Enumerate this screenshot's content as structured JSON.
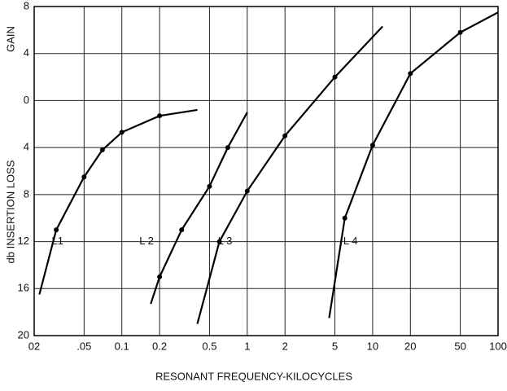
{
  "chart_data": {
    "type": "line",
    "xlabel": "RESONANT FREQUENCY-KILOCYCLES",
    "ylabel_top": "GAIN",
    "ylabel_bottom": "db INSERTION LOSS",
    "xscale": "log",
    "grid": true,
    "xlim": [
      0.02,
      100
    ],
    "xticks": [
      {
        "value": 0.02,
        "label": "02"
      },
      {
        "value": 0.05,
        "label": ".05"
      },
      0.1,
      0.2,
      0.5,
      1,
      2,
      5,
      10,
      20,
      50,
      100
    ],
    "ylim": [
      -20,
      8
    ],
    "yticks": [
      8,
      4,
      0,
      {
        "value": -4,
        "label": "4"
      },
      {
        "value": -8,
        "label": "8"
      },
      {
        "value": -12,
        "label": "12"
      },
      {
        "value": -16,
        "label": "16"
      },
      {
        "value": -20,
        "label": "20"
      }
    ],
    "series": [
      {
        "name": "L1",
        "color": "#000000",
        "x": [
          0.022,
          0.03,
          0.05,
          0.07,
          0.1,
          0.2,
          0.4
        ],
        "values": [
          -16.5,
          -11,
          -6.5,
          -4.2,
          -2.7,
          -1.3,
          -0.8
        ]
      },
      {
        "name": "L 2",
        "color": "#000000",
        "x": [
          0.17,
          0.2,
          0.3,
          0.5,
          0.7,
          1
        ],
        "values": [
          -17.3,
          -15,
          -11,
          -7.3,
          -4,
          -1
        ]
      },
      {
        "name": "L 3",
        "color": "#000000",
        "x": [
          0.4,
          0.6,
          1,
          2,
          5,
          12
        ],
        "values": [
          -19,
          -12,
          -7.7,
          -3,
          2,
          6.3
        ]
      },
      {
        "name": "L 4",
        "color": "#000000",
        "x": [
          4.5,
          6,
          10,
          20,
          50,
          100
        ],
        "values": [
          -18.5,
          -10,
          -3.8,
          2.3,
          5.8,
          7.5
        ]
      }
    ]
  }
}
